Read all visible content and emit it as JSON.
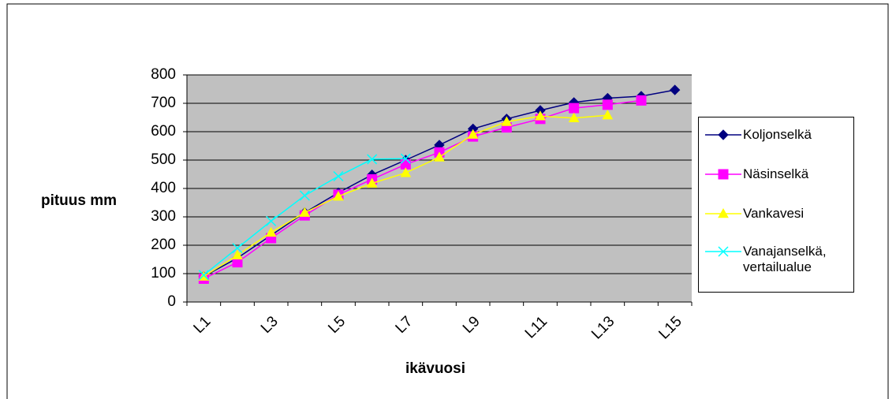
{
  "chart_data": {
    "type": "line",
    "x_label": "ikävuosi",
    "y_label": "pituus mm",
    "categories": [
      "L1",
      null,
      "L3",
      null,
      "L5",
      null,
      "L7",
      null,
      "L9",
      null,
      "L11",
      null,
      "L13",
      null,
      "L15"
    ],
    "ylim": [
      0,
      800
    ],
    "yticks": [
      0,
      100,
      200,
      300,
      400,
      500,
      600,
      700,
      800
    ],
    "grid": true,
    "legend": "right",
    "series": [
      {
        "name": "Koljonselkä",
        "color": "#000080",
        "marker": "diamond",
        "values": [
          90,
          155,
          235,
          315,
          385,
          448,
          500,
          553,
          610,
          645,
          675,
          703,
          718,
          725,
          747
        ]
      },
      {
        "name": "Näsinselkä",
        "color": "#ff00ff",
        "marker": "square",
        "values": [
          82,
          140,
          225,
          305,
          378,
          432,
          485,
          527,
          583,
          615,
          645,
          683,
          695,
          710,
          null
        ]
      },
      {
        "name": "Vankavesi",
        "color": "#ffff00",
        "marker": "triangle",
        "values": [
          90,
          165,
          245,
          315,
          372,
          418,
          455,
          510,
          590,
          635,
          655,
          648,
          658,
          null,
          null
        ]
      },
      {
        "name": "Vanajanselkä, vertailualue",
        "color": "#00ffff",
        "marker": "x",
        "values": [
          95,
          190,
          285,
          375,
          443,
          503,
          505,
          null,
          null,
          null,
          null,
          null,
          null,
          null,
          null
        ]
      }
    ]
  }
}
